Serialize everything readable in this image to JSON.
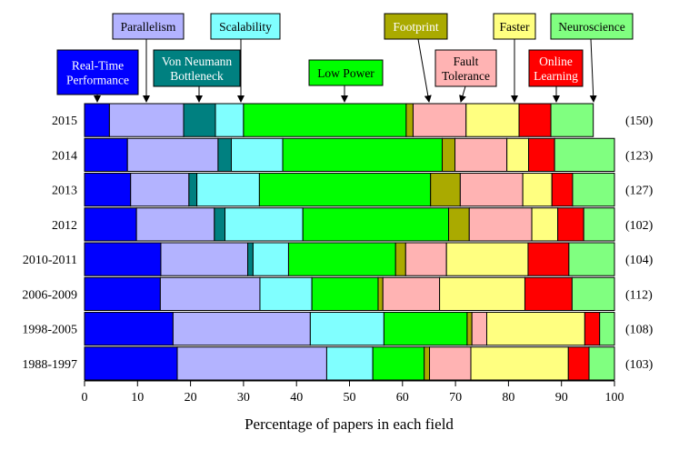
{
  "chart_data": {
    "type": "bar",
    "orientation": "horizontal",
    "stacked": true,
    "xlabel": "Percentage of papers in each field",
    "xlim": [
      0,
      100
    ],
    "xticks": [
      "0",
      "10",
      "20",
      "30",
      "40",
      "50",
      "60",
      "70",
      "80",
      "90",
      "100"
    ],
    "grid": false,
    "categories": [
      "2015",
      "2014",
      "2013",
      "2012",
      "2010-2011",
      "2006-2009",
      "1998-2005",
      "1988-1997"
    ],
    "counts": [
      "(150)",
      "(123)",
      "(127)",
      "(102)",
      "(104)",
      "(112)",
      "(108)",
      "(103)"
    ],
    "series": [
      {
        "name": "Real-Time Performance",
        "color": "#0000ff",
        "values": [
          4.7,
          8.1,
          8.7,
          9.8,
          14.4,
          14.3,
          16.7,
          17.5
        ]
      },
      {
        "name": "Parallelism",
        "color": "#b3b3ff",
        "values": [
          14.0,
          17.1,
          11.0,
          14.7,
          16.4,
          18.8,
          25.9,
          28.2
        ]
      },
      {
        "name": "Von Neumann Bottleneck",
        "color": "#008080",
        "values": [
          6.0,
          2.5,
          1.5,
          2.0,
          1.0,
          0.0,
          0.0,
          0.0
        ]
      },
      {
        "name": "Scalability",
        "color": "#80ffff",
        "values": [
          5.3,
          9.7,
          11.8,
          14.7,
          6.7,
          9.8,
          13.9,
          8.7
        ]
      },
      {
        "name": "Low Power",
        "color": "#00ff00",
        "values": [
          30.7,
          30.1,
          32.3,
          27.5,
          20.2,
          12.5,
          15.7,
          9.7
        ]
      },
      {
        "name": "Footprint",
        "color": "#aaaa00",
        "values": [
          1.3,
          2.4,
          5.6,
          3.9,
          1.9,
          0.9,
          0.9,
          1.0
        ]
      },
      {
        "name": "Fault Tolerance",
        "color": "#ffb3b3",
        "values": [
          10.0,
          9.8,
          11.8,
          11.8,
          7.7,
          10.7,
          2.8,
          7.8
        ]
      },
      {
        "name": "Faster",
        "color": "#ffff80",
        "values": [
          10.0,
          4.1,
          5.5,
          4.9,
          15.4,
          16.1,
          18.5,
          18.4
        ]
      },
      {
        "name": "Online Learning",
        "color": "#ff0000",
        "values": [
          6.0,
          4.9,
          3.9,
          4.9,
          7.7,
          8.9,
          2.8,
          3.9
        ]
      },
      {
        "name": "Neuroscience",
        "color": "#80ff80",
        "values": [
          8.0,
          11.3,
          7.9,
          5.8,
          8.6,
          8.0,
          2.8,
          4.8
        ]
      }
    ],
    "legend": [
      {
        "label_lines": [
          "Real-Time",
          "Performance"
        ],
        "series": "Real-Time Performance",
        "bg": "#0000ff",
        "text_color": "#ffffff"
      },
      {
        "label_lines": [
          "Parallelism"
        ],
        "series": "Parallelism",
        "bg": "#b3b3ff",
        "text_color": "#000000"
      },
      {
        "label_lines": [
          "Von Neumann",
          "Bottleneck"
        ],
        "series": "Von Neumann Bottleneck",
        "bg": "#008080",
        "text_color": "#ffffff"
      },
      {
        "label_lines": [
          "Scalability"
        ],
        "series": "Scalability",
        "bg": "#80ffff",
        "text_color": "#000000"
      },
      {
        "label_lines": [
          "Low Power"
        ],
        "series": "Low Power",
        "bg": "#00ff00",
        "text_color": "#000000"
      },
      {
        "label_lines": [
          "Footprint"
        ],
        "series": "Footprint",
        "bg": "#aaaa00",
        "text_color": "#ffffff"
      },
      {
        "label_lines": [
          "Fault",
          "Tolerance"
        ],
        "series": "Fault Tolerance",
        "bg": "#ffb3b3",
        "text_color": "#000000"
      },
      {
        "label_lines": [
          "Faster"
        ],
        "series": "Faster",
        "bg": "#ffff80",
        "text_color": "#000000"
      },
      {
        "label_lines": [
          "Online",
          "Learning"
        ],
        "series": "Online Learning",
        "bg": "#ff0000",
        "text_color": "#ffffff"
      },
      {
        "label_lines": [
          "Neuroscience"
        ],
        "series": "Neuroscience",
        "bg": "#80ff80",
        "text_color": "#000000"
      }
    ]
  }
}
